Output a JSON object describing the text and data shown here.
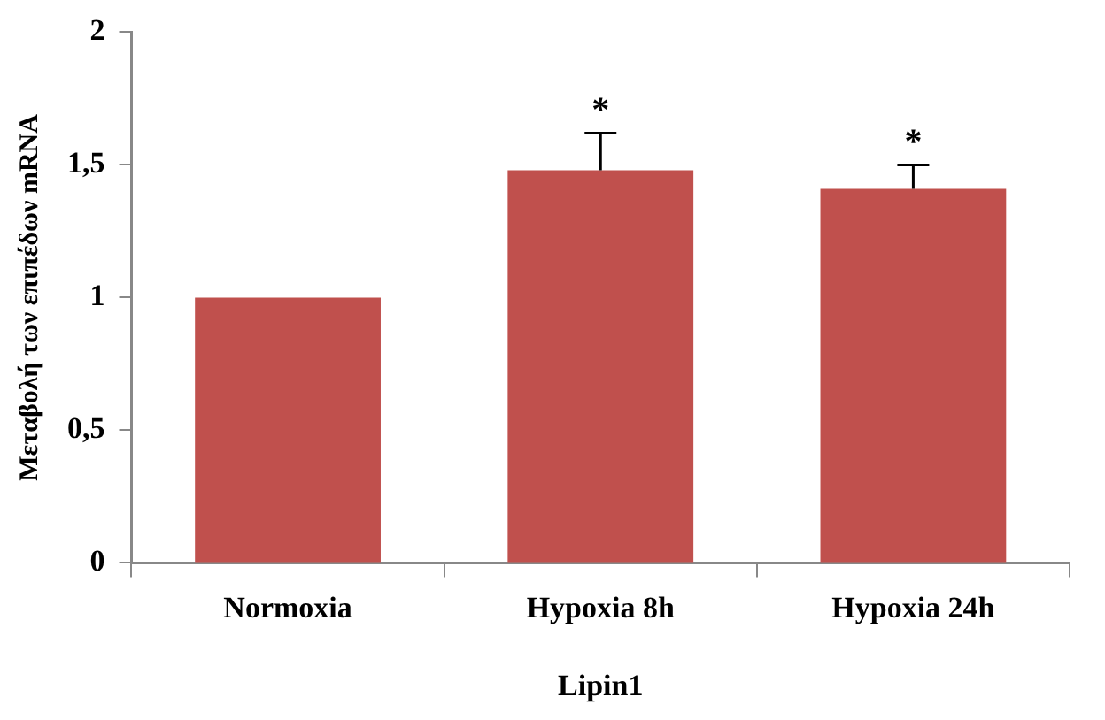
{
  "chart_data": {
    "type": "bar",
    "xlabel": "Lipin1",
    "ylabel": "Μεταβολή των επιπέδων mRNA",
    "categories": [
      "Normoxia",
      "Hypoxia 8h",
      "Hypoxia 24h"
    ],
    "values": [
      1.0,
      1.48,
      1.41
    ],
    "color": "#c0504d",
    "errors": [
      null,
      [
        1.48,
        1.62
      ],
      [
        1.41,
        1.5
      ]
    ],
    "ylim": [
      0,
      2
    ],
    "yticks": [
      0,
      {
        "value": 0.5,
        "label": "0,5"
      },
      1,
      {
        "value": 1.5,
        "label": "1,5"
      },
      2
    ],
    "grid": false,
    "legend": false,
    "annotations": [
      {
        "text": "*",
        "x": "Hypoxia 8h",
        "y": 1.62
      },
      {
        "text": "*",
        "x": "Hypoxia 24h",
        "y": 1.5
      }
    ]
  }
}
